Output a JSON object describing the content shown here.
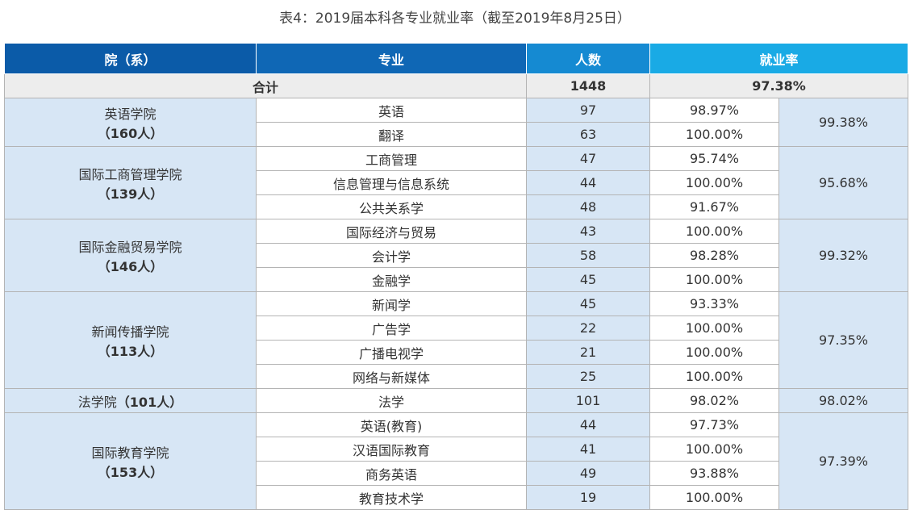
{
  "title": "表4：2019届本科各专业就业率（截至2019年8月25日）",
  "table": {
    "header": [
      "院（系）",
      "专业",
      "人数",
      "就业率"
    ],
    "total": {
      "label": "合计",
      "count": 1448,
      "rate": "97.38%"
    },
    "groups": [
      {
        "college": "英语学院",
        "college_count": "（160人）",
        "rate": "99.38%",
        "majors": [
          {
            "name": "英语",
            "count": 97,
            "rate": "98.97%"
          },
          {
            "name": "翻译",
            "count": 63,
            "rate": "100.00%"
          }
        ]
      },
      {
        "college": "国际工商管理学院",
        "college_count": "（139人）",
        "rate": "95.68%",
        "majors": [
          {
            "name": "工商管理",
            "count": 47,
            "rate": "95.74%"
          },
          {
            "name": "信息管理与信息系统",
            "count": 44,
            "rate": "100.00%"
          },
          {
            "name": "公共关系学",
            "count": 48,
            "rate": "91.67%"
          }
        ]
      },
      {
        "college": "国际金融贸易学院",
        "college_count": "（146人）",
        "rate": "99.32%",
        "majors": [
          {
            "name": "国际经济与贸易",
            "count": 43,
            "rate": "100.00%"
          },
          {
            "name": "会计学",
            "count": 58,
            "rate": "98.28%"
          },
          {
            "name": "金融学",
            "count": 45,
            "rate": "100.00%"
          }
        ]
      },
      {
        "college": "新闻传播学院",
        "college_count": "（113人）",
        "rate": "97.35%",
        "majors": [
          {
            "name": "新闻学",
            "count": 45,
            "rate": "93.33%"
          },
          {
            "name": "广告学",
            "count": 22,
            "rate": "100.00%"
          },
          {
            "name": "广播电视学",
            "count": 21,
            "rate": "100.00%"
          },
          {
            "name": "网络与新媒体",
            "count": 25,
            "rate": "100.00%"
          }
        ]
      },
      {
        "college": "法学院",
        "college_count": "（101人）",
        "rate": "98.02%",
        "majors": [
          {
            "name": "法学",
            "count": 101,
            "rate": "98.02%"
          }
        ]
      },
      {
        "college": "国际教育学院",
        "college_count": "（153人）",
        "rate": "97.39%",
        "majors": [
          {
            "name": "英语(教育)",
            "count": 44,
            "rate": "97.73%"
          },
          {
            "name": "汉语国际教育",
            "count": 41,
            "rate": "100.00%"
          },
          {
            "name": "商务英语",
            "count": 49,
            "rate": "93.88%"
          },
          {
            "name": "教育技术学",
            "count": 19,
            "rate": "100.00%"
          }
        ]
      }
    ]
  }
}
